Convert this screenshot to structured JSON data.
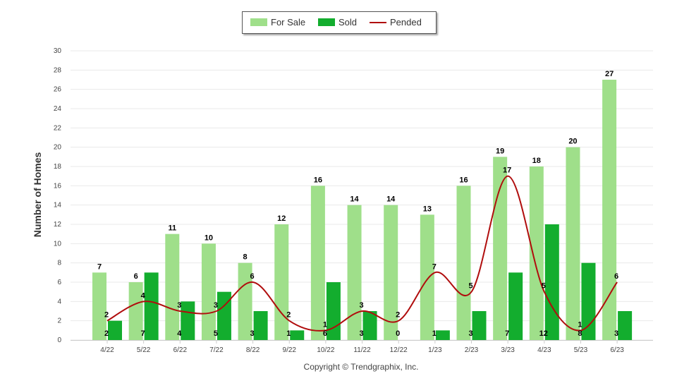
{
  "chart_data": {
    "type": "bar",
    "categories": [
      "4/22",
      "5/22",
      "6/22",
      "7/22",
      "8/22",
      "9/22",
      "10/22",
      "11/22",
      "12/22",
      "1/23",
      "2/23",
      "3/23",
      "4/23",
      "5/23",
      "6/23"
    ],
    "series": [
      {
        "name": "For Sale",
        "type": "bar",
        "color": "#9fdf8a",
        "values": [
          7,
          6,
          11,
          10,
          8,
          12,
          16,
          14,
          14,
          13,
          16,
          19,
          18,
          20,
          27
        ]
      },
      {
        "name": "Sold",
        "type": "bar",
        "color": "#13ad2e",
        "values": [
          2,
          7,
          4,
          5,
          3,
          1,
          6,
          3,
          0,
          1,
          3,
          7,
          12,
          8,
          3
        ]
      },
      {
        "name": "Pended",
        "type": "line",
        "color": "#b00d0d",
        "values": [
          2,
          4,
          3,
          3,
          6,
          2,
          1,
          3,
          2,
          7,
          5,
          17,
          5,
          1,
          6
        ]
      }
    ],
    "ylabel": "Number of Homes",
    "ylim": [
      0,
      30
    ],
    "yticks": [
      0,
      2,
      4,
      6,
      8,
      10,
      12,
      14,
      16,
      18,
      20,
      22,
      24,
      26,
      28,
      30
    ],
    "grid": true,
    "legend_position": "top-center"
  },
  "legend": {
    "for_sale": "For Sale",
    "sold": "Sold",
    "pended": "Pended"
  },
  "footer": {
    "copyright": "Copyright © Trendgraphix, Inc."
  }
}
